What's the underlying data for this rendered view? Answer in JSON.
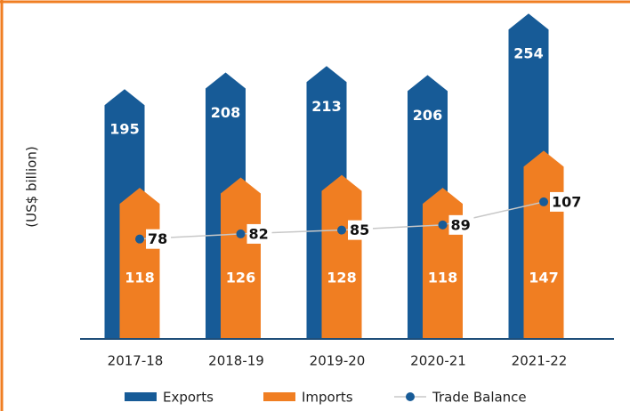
{
  "chart_data": {
    "type": "bar",
    "ylabel": "(US$ billion)",
    "categories": [
      "2017-18",
      "2018-19",
      "2019-20",
      "2020-21",
      "2021-22"
    ],
    "series": [
      {
        "name": "Exports",
        "color": "#175b97",
        "values": [
          195,
          208,
          213,
          206,
          254
        ]
      },
      {
        "name": "Imports",
        "color": "#f07e22",
        "values": [
          118,
          126,
          128,
          118,
          147
        ]
      },
      {
        "name": "Trade Balance",
        "type": "line",
        "color": "#175b97",
        "line_color": "#c8c8c8",
        "values": [
          78,
          82,
          85,
          89,
          107
        ]
      }
    ]
  }
}
